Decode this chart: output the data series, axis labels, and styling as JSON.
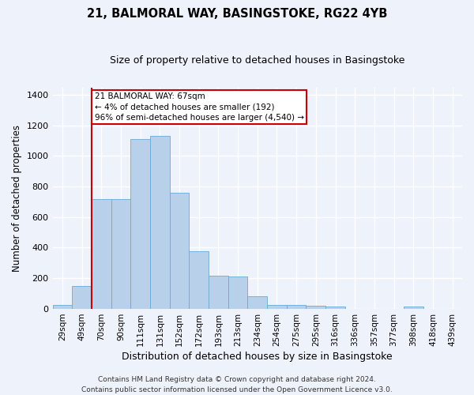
{
  "title_line1": "21, BALMORAL WAY, BASINGSTOKE, RG22 4YB",
  "title_line2": "Size of property relative to detached houses in Basingstoke",
  "xlabel": "Distribution of detached houses by size in Basingstoke",
  "ylabel": "Number of detached properties",
  "categories": [
    "29sqm",
    "49sqm",
    "70sqm",
    "90sqm",
    "111sqm",
    "131sqm",
    "152sqm",
    "172sqm",
    "193sqm",
    "213sqm",
    "234sqm",
    "254sqm",
    "275sqm",
    "295sqm",
    "316sqm",
    "336sqm",
    "357sqm",
    "377sqm",
    "398sqm",
    "418sqm",
    "439sqm"
  ],
  "values": [
    25,
    150,
    720,
    720,
    1110,
    1130,
    760,
    375,
    215,
    210,
    80,
    25,
    25,
    20,
    15,
    0,
    0,
    0,
    12,
    0,
    0
  ],
  "bar_color": "#b8d0ea",
  "bar_edge_color": "#6aaad4",
  "vline_index": 2,
  "annotation_text": "21 BALMORAL WAY: 67sqm\n← 4% of detached houses are smaller (192)\n96% of semi-detached houses are larger (4,540) →",
  "annotation_box_color": "#ffffff",
  "annotation_box_edge": "#cc0000",
  "vline_color": "#cc0000",
  "ylim": [
    0,
    1450
  ],
  "yticks": [
    0,
    200,
    400,
    600,
    800,
    1000,
    1200,
    1400
  ],
  "footer_line1": "Contains HM Land Registry data © Crown copyright and database right 2024.",
  "footer_line2": "Contains public sector information licensed under the Open Government Licence v3.0.",
  "background_color": "#eef2fa",
  "grid_color": "#ffffff",
  "title_fontsize": 10.5,
  "subtitle_fontsize": 9,
  "ylabel_fontsize": 8.5,
  "xlabel_fontsize": 9,
  "tick_fontsize": 7.5,
  "ann_fontsize": 7.5,
  "footer_fontsize": 6.5
}
